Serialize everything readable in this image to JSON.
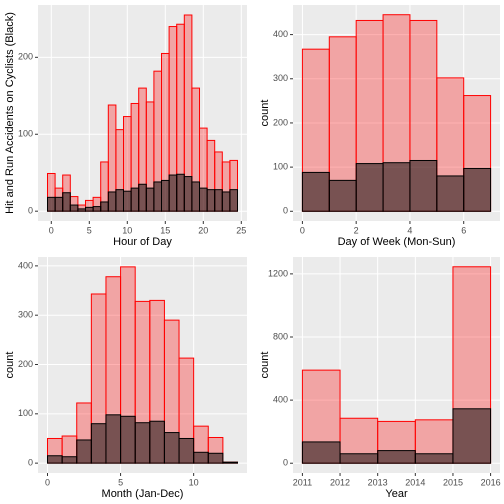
{
  "chart_data": [
    {
      "type": "histogram",
      "xlabel": "Hour of Day",
      "ylabel": "Hit and Run Accidents on Cyclists (Black)",
      "bins": [
        -0.5,
        0.5,
        1.5,
        2.5,
        3.5,
        4.5,
        5.5,
        6.5,
        7.5,
        8.5,
        9.5,
        10.5,
        11.5,
        12.5,
        13.5,
        14.5,
        15.5,
        16.5,
        17.5,
        18.5,
        19.5,
        20.5,
        21.5,
        22.5,
        23.5,
        24.5
      ],
      "series": [
        {
          "color": "#ff0000",
          "values": [
            49,
            30,
            47,
            19,
            8,
            14,
            18,
            64,
            138,
            106,
            123,
            140,
            160,
            142,
            182,
            205,
            240,
            243,
            255,
            160,
            108,
            92,
            77,
            64,
            66
          ]
        },
        {
          "color": "#000000",
          "values": [
            18,
            18,
            24,
            8,
            3,
            5,
            6,
            12,
            25,
            28,
            26,
            30,
            35,
            30,
            38,
            40,
            47,
            48,
            45,
            38,
            30,
            28,
            28,
            25,
            28
          ]
        }
      ],
      "xlim": [
        -1.75,
        25.75
      ],
      "xticks": [
        0,
        5,
        10,
        15,
        20,
        25
      ],
      "ylim": [
        -12.75,
        268
      ],
      "yticks": [
        0,
        100,
        200
      ],
      "grid": true
    },
    {
      "type": "histogram",
      "xlabel": "Day of Week (Mon-Sun)",
      "ylabel": "count",
      "bins": [
        0,
        1,
        2,
        3,
        4,
        5,
        6,
        7
      ],
      "series": [
        {
          "color": "#ff0000",
          "values": [
            367,
            395,
            432,
            445,
            432,
            302,
            262
          ]
        },
        {
          "color": "#000000",
          "values": [
            88,
            70,
            108,
            110,
            115,
            80,
            97
          ]
        }
      ],
      "xlim": [
        -0.35,
        7.35
      ],
      "xticks": [
        0,
        2,
        4,
        6
      ],
      "ylim": [
        -22,
        467
      ],
      "yticks": [
        0,
        100,
        200,
        300,
        400
      ],
      "grid": true
    },
    {
      "type": "histogram",
      "xlabel": "Month (Jan-Dec)",
      "ylabel": "count",
      "bins": [
        0,
        1,
        2,
        3,
        4,
        5,
        6,
        7,
        8,
        9,
        10,
        11,
        12,
        13
      ],
      "series": [
        {
          "color": "#ff0000",
          "values": [
            50,
            55,
            122,
            343,
            378,
            398,
            328,
            330,
            290,
            213,
            75,
            52,
            2
          ]
        },
        {
          "color": "#000000",
          "values": [
            15,
            13,
            47,
            80,
            98,
            95,
            82,
            85,
            62,
            50,
            22,
            20,
            2
          ]
        }
      ],
      "xlim": [
        -0.65,
        13.65
      ],
      "xticks": [
        0,
        5,
        10
      ],
      "ylim": [
        -20,
        418
      ],
      "yticks": [
        0,
        100,
        200,
        300,
        400
      ],
      "grid": true
    },
    {
      "type": "histogram",
      "xlabel": "Year",
      "ylabel": "count",
      "bins": [
        2011,
        2012,
        2013,
        2014,
        2015,
        2016
      ],
      "series": [
        {
          "color": "#ff0000",
          "values": [
            590,
            285,
            265,
            275,
            1245
          ]
        },
        {
          "color": "#000000",
          "values": [
            135,
            60,
            80,
            60,
            345
          ]
        }
      ],
      "xlim": [
        2010.75,
        2016.25
      ],
      "xticks": [
        2011,
        2012,
        2013,
        2014,
        2015,
        2016
      ],
      "ylim": [
        -62,
        1307
      ],
      "yticks": [
        0,
        400,
        800,
        1200
      ],
      "grid": true
    }
  ]
}
